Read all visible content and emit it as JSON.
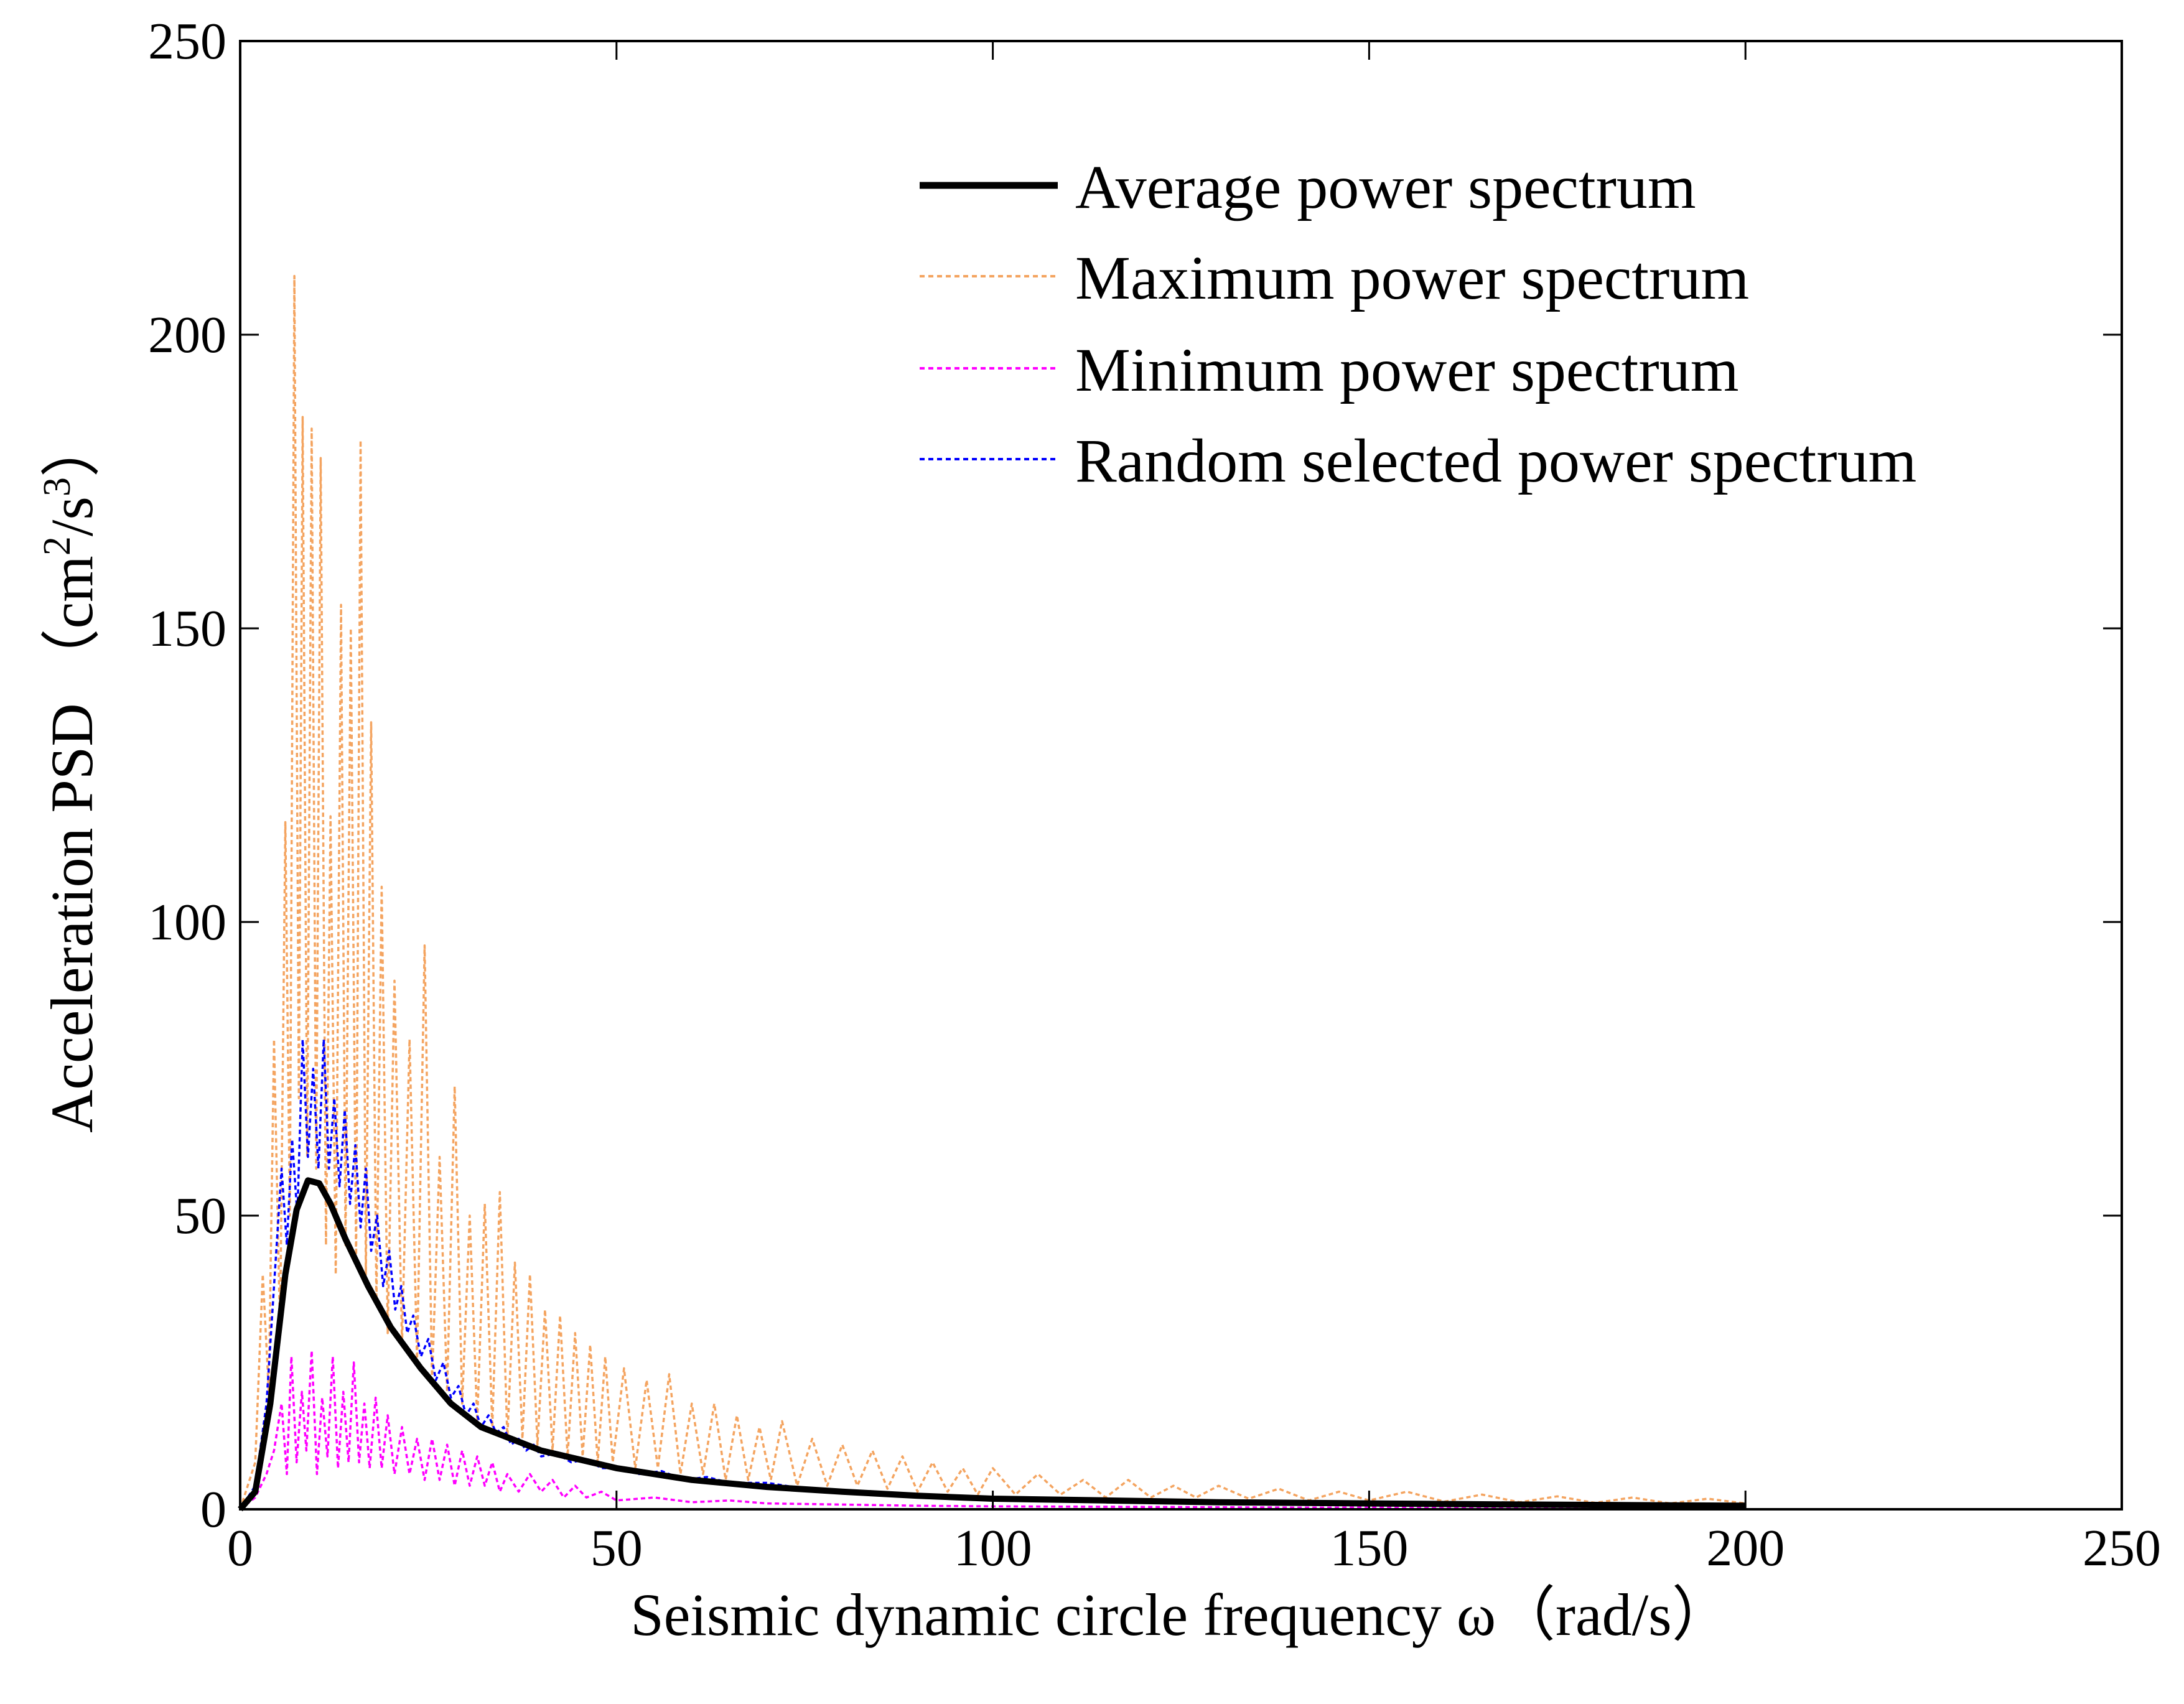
{
  "chart_data": {
    "type": "line",
    "title": "",
    "xlabel": "Seismic dynamic circle frequency ω（rad/s）",
    "ylabel_main": "Acceleration PSD （cm",
    "ylabel_sup1": "2",
    "ylabel_mid": "/s",
    "ylabel_sup2": "3",
    "ylabel_end": "）",
    "xlim": [
      0,
      250
    ],
    "ylim": [
      0,
      250
    ],
    "xticks": [
      0,
      50,
      100,
      150,
      200,
      250
    ],
    "yticks": [
      0,
      50,
      100,
      150,
      200,
      250
    ],
    "grid": false,
    "legend_position": "top-right",
    "series": [
      {
        "name": "Average power spectrum",
        "color": "#000000",
        "style": "solid",
        "points": [
          [
            0,
            0
          ],
          [
            2,
            3
          ],
          [
            4,
            18
          ],
          [
            6,
            40
          ],
          [
            7.5,
            51
          ],
          [
            9,
            56
          ],
          [
            10.5,
            55.5
          ],
          [
            12,
            52
          ],
          [
            14,
            46
          ],
          [
            17,
            38
          ],
          [
            20,
            31
          ],
          [
            24,
            24
          ],
          [
            28,
            18
          ],
          [
            32,
            14
          ],
          [
            36,
            12
          ],
          [
            40,
            10
          ],
          [
            45,
            8.5
          ],
          [
            50,
            7
          ],
          [
            60,
            5
          ],
          [
            70,
            3.8
          ],
          [
            80,
            3
          ],
          [
            90,
            2.3
          ],
          [
            100,
            1.8
          ],
          [
            115,
            1.5
          ],
          [
            130,
            1.2
          ],
          [
            150,
            1
          ],
          [
            170,
            0.8
          ],
          [
            200,
            0.6
          ]
        ]
      },
      {
        "name": "Maximum power spectrum",
        "color": "#f4a460",
        "style": "dotted",
        "points": [
          [
            0,
            0
          ],
          [
            2,
            8
          ],
          [
            3,
            40
          ],
          [
            3.8,
            20
          ],
          [
            4.5,
            80
          ],
          [
            5.3,
            30
          ],
          [
            6,
            117
          ],
          [
            6.6,
            50
          ],
          [
            7.2,
            210
          ],
          [
            7.8,
            70
          ],
          [
            8.3,
            186
          ],
          [
            8.9,
            60
          ],
          [
            9.5,
            184
          ],
          [
            10.1,
            58
          ],
          [
            10.7,
            179
          ],
          [
            11.4,
            45
          ],
          [
            12,
            118
          ],
          [
            12.7,
            40
          ],
          [
            13.4,
            154
          ],
          [
            14,
            45
          ],
          [
            14.7,
            150
          ],
          [
            15.4,
            42
          ],
          [
            16,
            182
          ],
          [
            16.7,
            40
          ],
          [
            17.4,
            134
          ],
          [
            18.1,
            35
          ],
          [
            18.8,
            106
          ],
          [
            19.6,
            30
          ],
          [
            20.5,
            90
          ],
          [
            21.5,
            28
          ],
          [
            22.5,
            80
          ],
          [
            23.5,
            25
          ],
          [
            24.5,
            96
          ],
          [
            25.5,
            22
          ],
          [
            26.5,
            60
          ],
          [
            27.5,
            20
          ],
          [
            28.5,
            72
          ],
          [
            29.5,
            18
          ],
          [
            30.5,
            50
          ],
          [
            31.5,
            15
          ],
          [
            32.5,
            52
          ],
          [
            33.5,
            14
          ],
          [
            34.5,
            54
          ],
          [
            35.5,
            12
          ],
          [
            36.5,
            42
          ],
          [
            37.5,
            12
          ],
          [
            38.5,
            40
          ],
          [
            39.5,
            11
          ],
          [
            40.5,
            34
          ],
          [
            41.5,
            10
          ],
          [
            42.5,
            33
          ],
          [
            43.5,
            9
          ],
          [
            44.5,
            30
          ],
          [
            45.5,
            9
          ],
          [
            46.5,
            28
          ],
          [
            47.5,
            8
          ],
          [
            48.5,
            26
          ],
          [
            49.5,
            8
          ],
          [
            51,
            24
          ],
          [
            52.5,
            7
          ],
          [
            54,
            22
          ],
          [
            55.5,
            7
          ],
          [
            57,
            23
          ],
          [
            58.5,
            6
          ],
          [
            60,
            18
          ],
          [
            61.5,
            6
          ],
          [
            63,
            18
          ],
          [
            64.5,
            5
          ],
          [
            66,
            16
          ],
          [
            67.5,
            5
          ],
          [
            69,
            14
          ],
          [
            70.5,
            5
          ],
          [
            72,
            15
          ],
          [
            74,
            4
          ],
          [
            76,
            12
          ],
          [
            78,
            4
          ],
          [
            80,
            11
          ],
          [
            82,
            4
          ],
          [
            84,
            10
          ],
          [
            86,
            3.5
          ],
          [
            88,
            9
          ],
          [
            90,
            3
          ],
          [
            92,
            8
          ],
          [
            94,
            3
          ],
          [
            96,
            7
          ],
          [
            98,
            2.5
          ],
          [
            100,
            7
          ],
          [
            103,
            2.5
          ],
          [
            106,
            6
          ],
          [
            109,
            2.5
          ],
          [
            112,
            5
          ],
          [
            115,
            2
          ],
          [
            118,
            5
          ],
          [
            121,
            2
          ],
          [
            124,
            4
          ],
          [
            127,
            2
          ],
          [
            130,
            4
          ],
          [
            134,
            1.8
          ],
          [
            138,
            3.5
          ],
          [
            142,
            1.5
          ],
          [
            146,
            3
          ],
          [
            150,
            1.5
          ],
          [
            155,
            3
          ],
          [
            160,
            1.3
          ],
          [
            165,
            2.5
          ],
          [
            170,
            1.2
          ],
          [
            175,
            2.2
          ],
          [
            180,
            1.1
          ],
          [
            185,
            2
          ],
          [
            190,
            1
          ],
          [
            195,
            1.8
          ],
          [
            200,
            1
          ]
        ]
      },
      {
        "name": "Minimum power spectrum",
        "color": "#ff00ff",
        "style": "dotted",
        "points": [
          [
            0,
            0
          ],
          [
            2,
            2
          ],
          [
            3.5,
            6
          ],
          [
            4.5,
            10
          ],
          [
            5.5,
            18
          ],
          [
            6.2,
            6
          ],
          [
            6.8,
            26
          ],
          [
            7.5,
            8
          ],
          [
            8.2,
            20
          ],
          [
            8.8,
            10
          ],
          [
            9.5,
            27
          ],
          [
            10.2,
            6
          ],
          [
            10.9,
            19
          ],
          [
            11.6,
            9
          ],
          [
            12.3,
            26
          ],
          [
            13,
            7
          ],
          [
            13.7,
            20
          ],
          [
            14.4,
            8
          ],
          [
            15.1,
            25
          ],
          [
            15.8,
            8
          ],
          [
            16.5,
            18
          ],
          [
            17.2,
            7
          ],
          [
            18,
            19
          ],
          [
            18.8,
            7
          ],
          [
            19.6,
            16
          ],
          [
            20.5,
            6
          ],
          [
            21.5,
            14
          ],
          [
            22.5,
            6
          ],
          [
            23.5,
            12
          ],
          [
            24.5,
            5
          ],
          [
            25.5,
            12
          ],
          [
            26.5,
            5
          ],
          [
            27.5,
            11
          ],
          [
            28.5,
            4
          ],
          [
            29.5,
            10
          ],
          [
            30.5,
            4
          ],
          [
            31.5,
            9
          ],
          [
            32.5,
            4
          ],
          [
            33.5,
            8
          ],
          [
            34.5,
            3
          ],
          [
            35.5,
            6
          ],
          [
            37,
            3
          ],
          [
            38.5,
            6
          ],
          [
            40,
            3
          ],
          [
            41.5,
            5
          ],
          [
            43,
            2
          ],
          [
            44.5,
            4
          ],
          [
            46,
            2
          ],
          [
            48,
            3
          ],
          [
            50,
            1.5
          ],
          [
            55,
            2
          ],
          [
            60,
            1.2
          ],
          [
            65,
            1.5
          ],
          [
            70,
            1
          ],
          [
            80,
            0.8
          ],
          [
            90,
            0.6
          ],
          [
            100,
            0.5
          ],
          [
            120,
            0.4
          ],
          [
            140,
            0.3
          ],
          [
            160,
            0.3
          ],
          [
            180,
            0.2
          ],
          [
            200,
            0.2
          ]
        ]
      },
      {
        "name": "Random selected power spectrum",
        "color": "#0000ff",
        "style": "dotted",
        "points": [
          [
            0,
            0
          ],
          [
            2,
            4
          ],
          [
            3.5,
            18
          ],
          [
            4.5,
            38
          ],
          [
            5.5,
            58
          ],
          [
            6.2,
            45
          ],
          [
            6.9,
            63
          ],
          [
            7.6,
            50
          ],
          [
            8.3,
            80
          ],
          [
            9,
            60
          ],
          [
            9.7,
            75
          ],
          [
            10.4,
            58
          ],
          [
            11.1,
            80
          ],
          [
            11.8,
            58
          ],
          [
            12.5,
            70
          ],
          [
            13.2,
            55
          ],
          [
            13.9,
            68
          ],
          [
            14.6,
            52
          ],
          [
            15.3,
            62
          ],
          [
            16,
            48
          ],
          [
            16.7,
            58
          ],
          [
            17.4,
            44
          ],
          [
            18.2,
            50
          ],
          [
            19,
            38
          ],
          [
            19.8,
            44
          ],
          [
            20.6,
            34
          ],
          [
            21.4,
            38
          ],
          [
            22.2,
            30
          ],
          [
            23,
            33
          ],
          [
            24,
            26
          ],
          [
            25,
            29
          ],
          [
            26,
            22
          ],
          [
            27,
            25
          ],
          [
            28,
            19
          ],
          [
            29,
            21
          ],
          [
            30,
            16
          ],
          [
            31,
            18
          ],
          [
            32,
            14
          ],
          [
            33,
            16
          ],
          [
            34,
            13
          ],
          [
            35,
            14
          ],
          [
            36,
            11
          ],
          [
            37,
            12
          ],
          [
            38,
            10
          ],
          [
            39,
            11
          ],
          [
            40,
            9
          ],
          [
            42,
            9.5
          ],
          [
            44,
            8
          ],
          [
            46,
            8.5
          ],
          [
            48,
            7
          ],
          [
            50,
            7
          ],
          [
            53,
            6
          ],
          [
            56,
            6.5
          ],
          [
            59,
            5
          ],
          [
            62,
            5.5
          ],
          [
            65,
            4.5
          ],
          [
            70,
            4.5
          ],
          [
            75,
            3.5
          ],
          [
            80,
            3
          ],
          [
            90,
            2.3
          ],
          [
            100,
            1.9
          ],
          [
            115,
            1.5
          ],
          [
            130,
            1.2
          ],
          [
            150,
            1
          ],
          [
            170,
            0.8
          ],
          [
            200,
            0.6
          ]
        ]
      }
    ]
  }
}
